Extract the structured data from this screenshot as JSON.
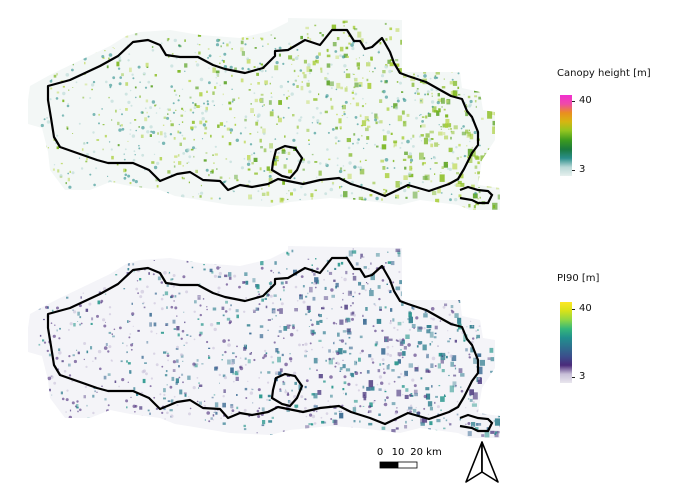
{
  "maps": [
    {
      "legend_title": "Canopy height [m]",
      "legend_max": "40",
      "legend_min": "3",
      "palette": [
        "#e6f0ee",
        "#b8d8d6",
        "#2a8e8a",
        "#1a7a3e",
        "#3b9a1f",
        "#93c51f",
        "#d6b611",
        "#ea8f1f",
        "#ef4aa8",
        "#f12fd0"
      ],
      "fill_colors": [
        "#aacf3a",
        "#8fc02a",
        "#7ab51d",
        "#c5dd6a",
        "#5fa52a"
      ],
      "border_color": "#000000"
    },
    {
      "legend_title": "PI90 [m]",
      "legend_max": "40",
      "legend_min": "3",
      "palette": [
        "#e9e6ee",
        "#c8bfd8",
        "#4a2a7a",
        "#3b4f8c",
        "#2e6f8e",
        "#21908d",
        "#35b779",
        "#8fd744",
        "#d7e219",
        "#fde725"
      ],
      "fill_colors": [
        "#2e7f8e",
        "#3a6a92",
        "#4f8ea0",
        "#5b4a8a",
        "#27968c"
      ],
      "border_color": "#000000"
    }
  ],
  "scale_bar": {
    "tick_labels": [
      "0",
      "10",
      "20 km"
    ]
  },
  "north_arrow": {
    "icon": "north-arrow-icon"
  }
}
